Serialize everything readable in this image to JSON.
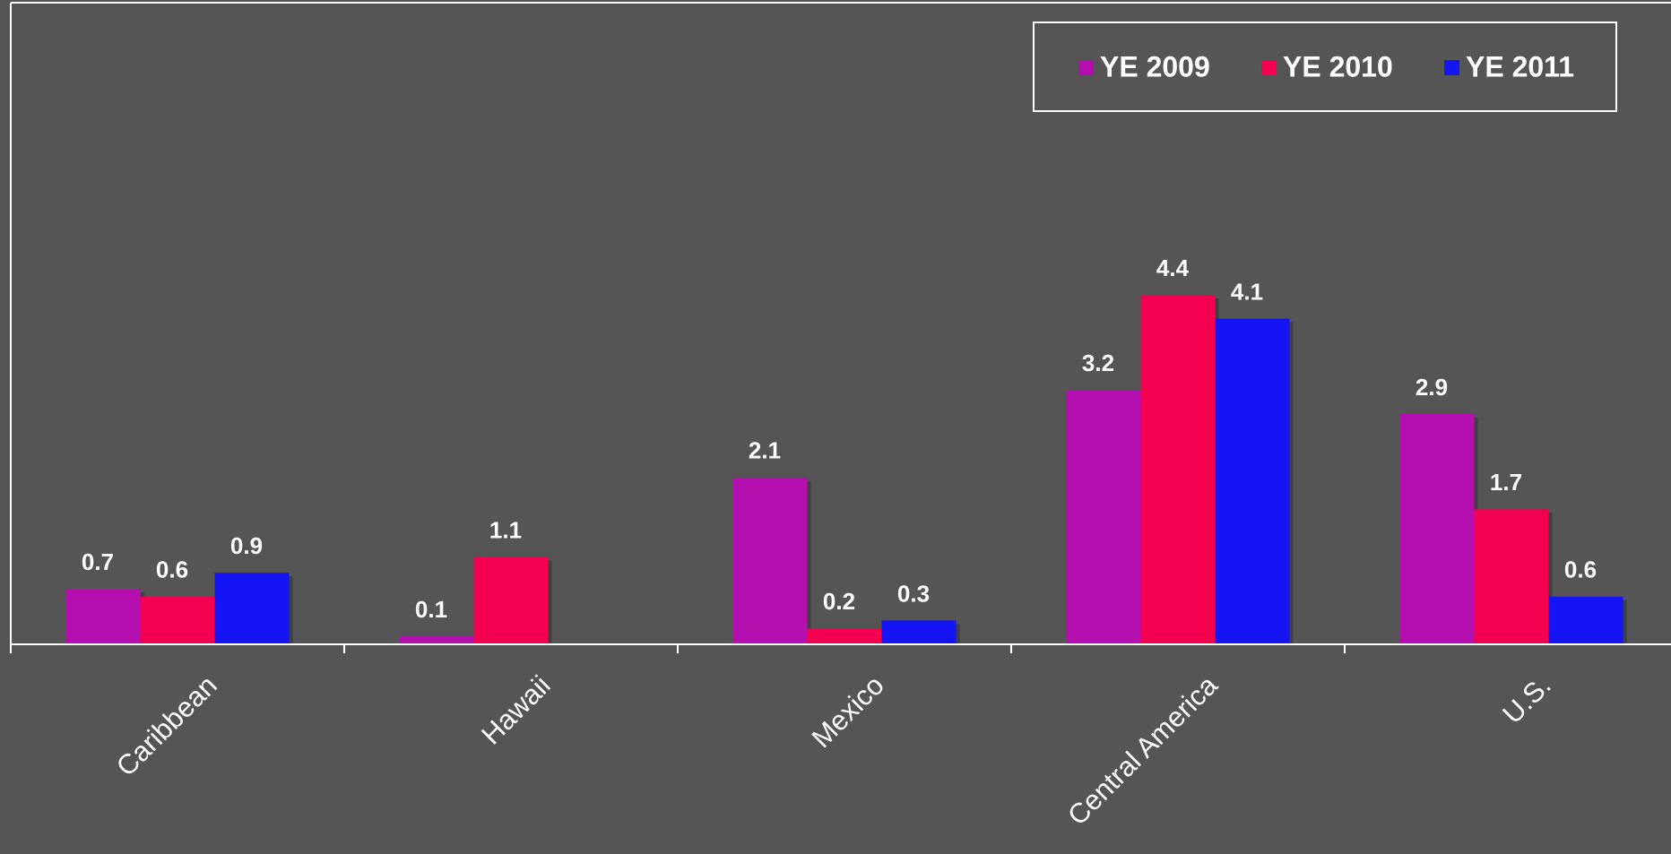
{
  "chart_data": {
    "type": "bar",
    "categories": [
      "Caribbean",
      "Hawaii",
      "Mexico",
      "Central America",
      "U.S."
    ],
    "series": [
      {
        "name": "YE 2009",
        "color": "#b50fb0",
        "values": [
          0.7,
          0.1,
          2.1,
          3.2,
          2.9
        ]
      },
      {
        "name": "YE 2010",
        "color": "#f5004e",
        "values": [
          0.6,
          1.1,
          0.2,
          4.4,
          1.7
        ]
      },
      {
        "name": "YE 2011",
        "color": "#1414f5",
        "values": [
          0.9,
          null,
          0.3,
          4.1,
          0.6
        ]
      }
    ],
    "legend": "top-right"
  }
}
